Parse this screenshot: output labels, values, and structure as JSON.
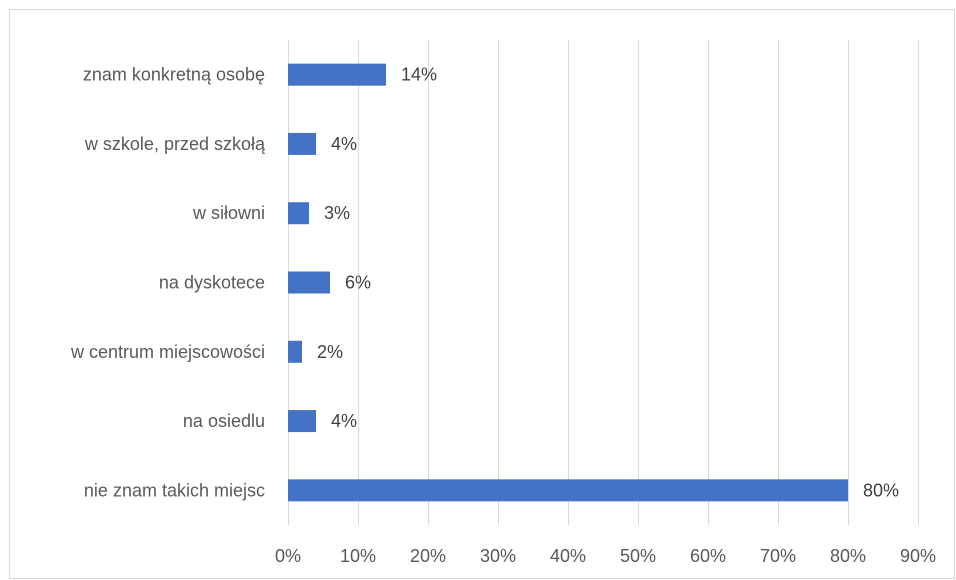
{
  "chart_data": {
    "type": "bar",
    "orientation": "horizontal",
    "categories": [
      "znam konkretną osobę",
      "w szkole, przed szkołą",
      "w siłowni",
      "na dyskotece",
      "w centrum miejscowości",
      "na osiedlu",
      "nie znam takich miejsc"
    ],
    "values": [
      14,
      4,
      3,
      6,
      2,
      4,
      80
    ],
    "data_labels": [
      "14%",
      "4%",
      "3%",
      "6%",
      "2%",
      "4%",
      "80%"
    ],
    "xlim": [
      0,
      90
    ],
    "x_ticks": [
      0,
      10,
      20,
      30,
      40,
      50,
      60,
      70,
      80,
      90
    ],
    "x_tick_labels": [
      "0%",
      "10%",
      "20%",
      "30%",
      "40%",
      "50%",
      "60%",
      "70%",
      "80%",
      "90%"
    ],
    "title": "",
    "xlabel": "",
    "ylabel": "",
    "grid": true,
    "legend": "none",
    "bar_color": "#4472c4",
    "grid_color": "#d9d9d9",
    "text_color": "#595959"
  }
}
